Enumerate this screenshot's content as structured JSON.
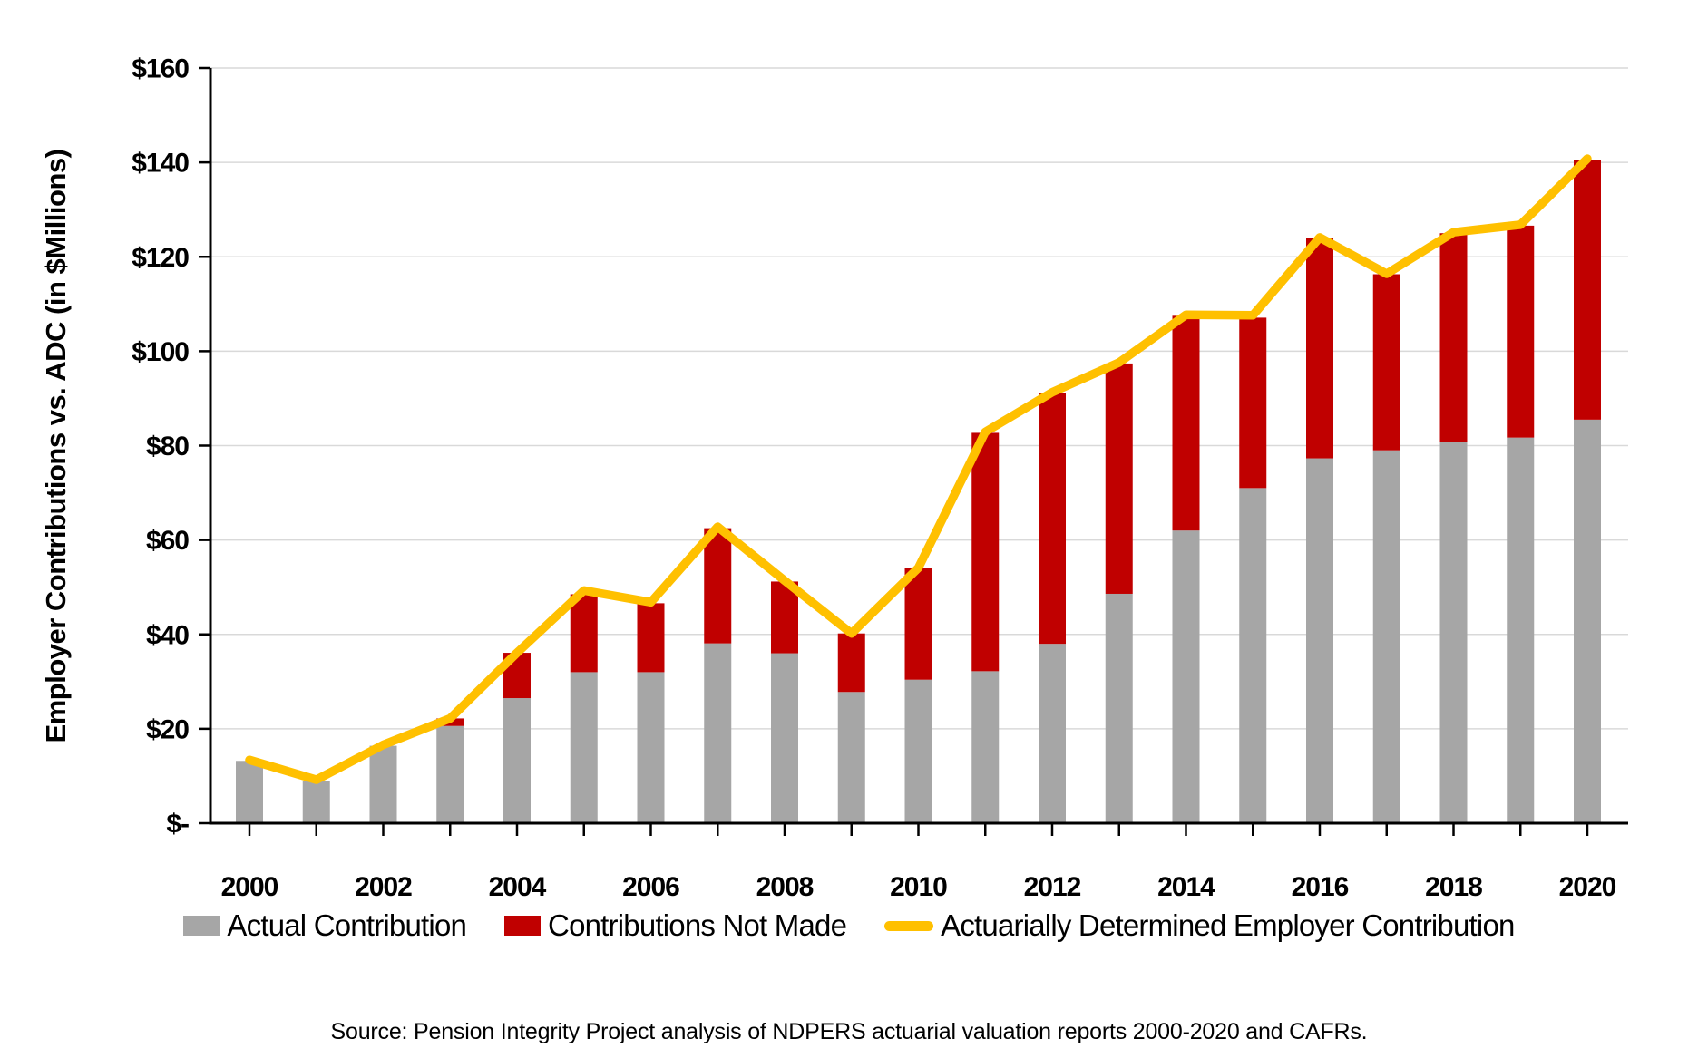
{
  "source": "Source: Pension Integrity Project analysis of NDPERS actuarial valuation reports 2000-2020 and CAFRs.",
  "colors": {
    "bar_actual": "#A6A6A6",
    "bar_not_made": "#C00000",
    "adc_line": "#FFC000",
    "gridline": "#D9D9D9",
    "axis": "#000000",
    "text": "#000000",
    "background": "#FFFFFF"
  },
  "chart_data": {
    "type": "bar",
    "subtype": "stacked-bars-with-line",
    "title": "",
    "xlabel": "",
    "ylabel": "Employer Contributions vs. ADC (in $Millions)",
    "ylim": [
      0,
      160
    ],
    "grid": true,
    "legend_position": "bottom",
    "categories": [
      2000,
      2001,
      2002,
      2003,
      2004,
      2005,
      2006,
      2007,
      2008,
      2009,
      2010,
      2011,
      2012,
      2013,
      2014,
      2015,
      2016,
      2017,
      2018,
      2019,
      2020
    ],
    "x_tick_labels": [
      "2000",
      "2002",
      "2004",
      "2006",
      "2008",
      "2010",
      "2012",
      "2014",
      "2016",
      "2018",
      "2020"
    ],
    "y_ticks": [
      {
        "value": 0,
        "label": "$-"
      },
      {
        "value": 20,
        "label": "$20"
      },
      {
        "value": 40,
        "label": "$40"
      },
      {
        "value": 60,
        "label": "$60"
      },
      {
        "value": 80,
        "label": "$80"
      },
      {
        "value": 100,
        "label": "$100"
      },
      {
        "value": 120,
        "label": "$120"
      },
      {
        "value": 140,
        "label": "$140"
      },
      {
        "value": 160,
        "label": "$160"
      }
    ],
    "series": [
      {
        "name": "Actual Contribution",
        "type": "bar",
        "color": "#A6A6A6",
        "values": [
          13.2,
          9.0,
          16.4,
          20.6,
          26.5,
          32.0,
          32.0,
          38.1,
          36.0,
          27.8,
          30.4,
          32.2,
          38.0,
          48.6,
          62.0,
          71.0,
          77.3,
          79.0,
          80.7,
          81.7,
          85.5
        ]
      },
      {
        "name": "Contributions Not Made",
        "type": "bar",
        "color": "#C00000",
        "values": [
          0,
          0,
          0,
          1.6,
          9.6,
          16.5,
          14.6,
          24.4,
          15.2,
          12.4,
          23.7,
          50.5,
          53.2,
          48.8,
          45.5,
          36.1,
          46.6,
          37.3,
          44.3,
          44.9,
          55.0
        ]
      },
      {
        "name": "Actuarially Determined Employer Contribution",
        "type": "line",
        "color": "#FFC000",
        "values": [
          13.4,
          9.2,
          16.6,
          22.2,
          36.1,
          49.3,
          46.8,
          62.8,
          51.4,
          40.2,
          54.1,
          82.9,
          91.3,
          97.6,
          107.7,
          107.6,
          124.1,
          116.4,
          125.2,
          126.8,
          140.8
        ]
      }
    ]
  }
}
